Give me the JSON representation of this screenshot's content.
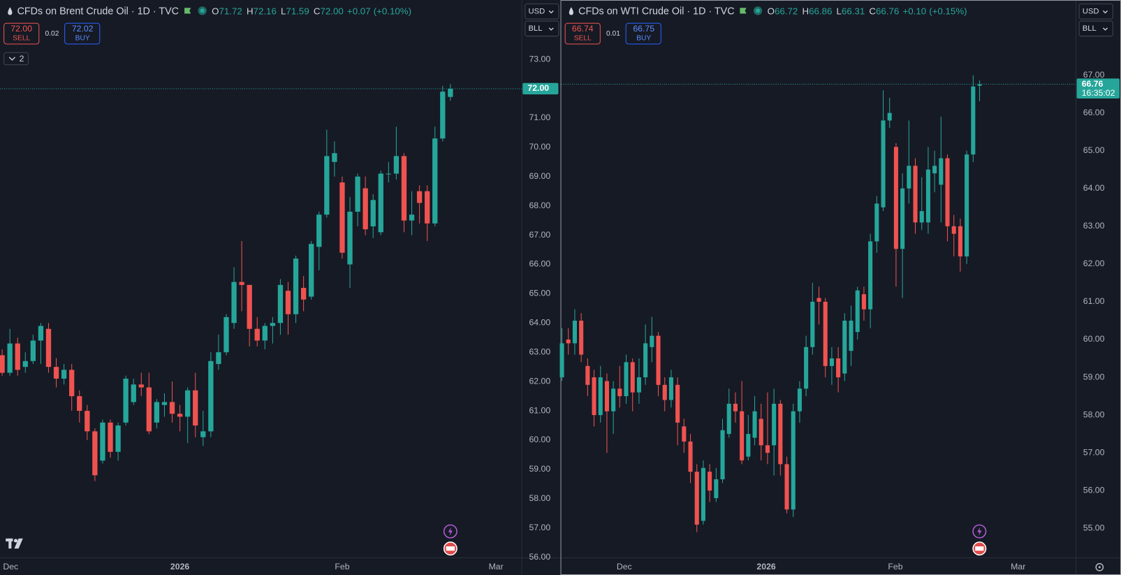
{
  "chart_data": [
    {
      "type": "candlestick",
      "title": "CFDs on Brent Crude Oil · 1D · TVC",
      "readout": {
        "labels": [
          "O",
          "H",
          "L",
          "C"
        ],
        "values": [
          "71.72",
          "72.16",
          "71.59",
          "72.00"
        ],
        "change": "+0.07",
        "change_pct": "(+0.10%)"
      },
      "sell": {
        "price": "72.00",
        "label": "SELL"
      },
      "spread": "0.02",
      "buy": {
        "price": "72.02",
        "label": "BUY"
      },
      "indicators": "2",
      "currency": "USD",
      "unit": "BLL",
      "up_color": "#26a69a",
      "down_color": "#ef5350",
      "open": [
        62.9,
        62.3,
        63.3,
        62.5,
        62.7,
        63.4,
        63.8,
        62.5,
        62.1,
        62.4,
        61.5,
        61.0,
        60.3,
        59.3,
        60.6,
        59.6,
        60.6,
        61.3,
        61.9,
        61.8,
        60.6,
        61.2,
        61.3,
        60.9,
        60.8,
        61.7,
        60.1,
        60.3,
        62.6,
        63.0,
        64.0,
        65.4,
        65.3,
        63.8,
        63.4,
        63.9,
        64.0,
        65.1,
        64.3,
        65.2,
        64.9,
        66.6,
        67.7,
        69.5,
        68.8,
        66.0,
        67.8,
        68.6,
        67.3,
        67.1,
        69.1,
        69.1,
        69.7,
        67.5,
        68.5,
        68.5,
        67.4,
        70.3,
        71.72
      ],
      "high": [
        63.1,
        63.8,
        63.5,
        63.0,
        63.6,
        64.0,
        64.0,
        62.8,
        62.6,
        62.6,
        61.7,
        61.2,
        60.4,
        60.7,
        60.7,
        60.6,
        62.2,
        62.1,
        62.3,
        62.3,
        61.4,
        61.6,
        62.0,
        61.2,
        61.8,
        62.3,
        61.0,
        63.0,
        63.6,
        64.3,
        65.9,
        66.8,
        65.3,
        64.2,
        64.0,
        64.2,
        65.5,
        65.4,
        66.3,
        65.6,
        66.8,
        67.8,
        70.6,
        70.2,
        69.0,
        68.3,
        69.1,
        69.0,
        68.4,
        69.2,
        69.5,
        70.7,
        69.8,
        68.5,
        68.7,
        68.7,
        70.7,
        72.1,
        72.16
      ],
      "low": [
        62.2,
        62.2,
        62.2,
        62.3,
        62.6,
        62.6,
        62.3,
        61.8,
        61.9,
        61.0,
        60.6,
        60.0,
        58.6,
        59.2,
        59.4,
        59.3,
        60.5,
        61.2,
        61.5,
        60.2,
        60.4,
        60.8,
        60.6,
        60.3,
        59.9,
        60.1,
        59.8,
        60.1,
        62.4,
        62.9,
        63.8,
        64.4,
        63.2,
        63.2,
        63.1,
        63.3,
        63.6,
        63.6,
        64.0,
        64.4,
        64.8,
        65.8,
        67.6,
        69.0,
        66.2,
        65.2,
        67.3,
        67.0,
        66.9,
        67.0,
        68.8,
        68.9,
        67.1,
        67.0,
        67.4,
        66.8,
        67.3,
        70.2,
        71.59
      ],
      "close": [
        62.3,
        63.3,
        62.4,
        62.7,
        63.4,
        63.9,
        62.5,
        62.1,
        62.4,
        61.5,
        61.0,
        60.3,
        58.8,
        60.6,
        59.6,
        60.5,
        62.1,
        61.9,
        61.8,
        60.3,
        61.3,
        61.3,
        60.9,
        60.8,
        61.7,
        60.5,
        60.3,
        62.7,
        63.0,
        64.2,
        65.4,
        65.3,
        63.8,
        63.4,
        63.9,
        64.0,
        65.3,
        64.3,
        66.2,
        64.8,
        66.7,
        67.7,
        69.7,
        69.8,
        66.4,
        67.8,
        69.0,
        67.2,
        68.2,
        69.1,
        69.1,
        69.7,
        67.5,
        67.7,
        68.1,
        67.4,
        70.3,
        71.9,
        72.0
      ],
      "last_price": "72.00",
      "xlim": [
        -0.28,
        67.25
      ],
      "xticks": [
        {
          "value": 1.1,
          "label": "Dec"
        },
        {
          "value": 23.0,
          "label": "2026"
        },
        {
          "value": 44.0,
          "label": "Feb"
        },
        {
          "value": 63.9,
          "label": "Mar"
        }
      ],
      "ylim": [
        55.98,
        75.03
      ],
      "yticks": [
        {
          "value": 56,
          "label": "56.00"
        },
        {
          "value": 57,
          "label": "57.00"
        },
        {
          "value": 58,
          "label": "58.00"
        },
        {
          "value": 59,
          "label": "59.00"
        },
        {
          "value": 60,
          "label": "60.00"
        },
        {
          "value": 61,
          "label": "61.00"
        },
        {
          "value": 62,
          "label": "62.00"
        },
        {
          "value": 63,
          "label": "63.00"
        },
        {
          "value": 64,
          "label": "64.00"
        },
        {
          "value": 65,
          "label": "65.00"
        },
        {
          "value": 66,
          "label": "66.00"
        },
        {
          "value": 67,
          "label": "67.00"
        },
        {
          "value": 68,
          "label": "68.00"
        },
        {
          "value": 69,
          "label": "69.00"
        },
        {
          "value": 70,
          "label": "70.00"
        },
        {
          "value": 71,
          "label": "71.00"
        },
        {
          "value": 72,
          "label": "72.00"
        },
        {
          "value": 73,
          "label": "73.00"
        }
      ],
      "grid": false
    },
    {
      "type": "candlestick",
      "title": "CFDs on WTI Crude Oil · 1D · TVC",
      "readout": {
        "labels": [
          "O",
          "H",
          "L",
          "C"
        ],
        "values": [
          "66.72",
          "66.86",
          "66.31",
          "66.76"
        ],
        "change": "+0.10",
        "change_pct": "(+0.15%)"
      },
      "sell": {
        "price": "66.74",
        "label": "SELL"
      },
      "spread": "0.01",
      "buy": {
        "price": "66.75",
        "label": "BUY"
      },
      "currency": "USD",
      "unit": "BLL",
      "countdown": "16:35:02",
      "up_color": "#26a69a",
      "down_color": "#ef5350",
      "open": [
        59.0,
        60.0,
        59.9,
        60.5,
        59.3,
        59.0,
        58.0,
        58.9,
        58.1,
        58.7,
        58.5,
        59.4,
        58.6,
        59.0,
        59.8,
        60.1,
        58.8,
        58.4,
        58.8,
        57.7,
        57.3,
        56.5,
        55.2,
        56.5,
        55.8,
        56.3,
        57.5,
        58.3,
        58.1,
        56.9,
        57.4,
        57.9,
        57.2,
        57.2,
        58.3,
        56.7,
        55.5,
        58.1,
        58.7,
        59.8,
        61.1,
        61.0,
        59.3,
        59.5,
        59.1,
        59.7,
        60.2,
        61.2,
        60.8,
        62.6,
        63.5,
        65.8,
        65.1,
        62.4,
        64.0,
        64.6,
        63.1,
        63.1,
        64.4,
        64.1,
        64.8,
        63.0,
        63.0,
        62.2,
        64.9,
        66.72
      ],
      "high": [
        60.3,
        60.3,
        60.8,
        60.7,
        59.5,
        59.2,
        59.3,
        59.1,
        58.9,
        59.3,
        59.6,
        59.5,
        59.5,
        60.4,
        60.6,
        60.2,
        59.0,
        59.2,
        59.0,
        57.9,
        57.5,
        56.7,
        56.8,
        56.7,
        56.6,
        57.9,
        58.7,
        58.6,
        58.9,
        58.0,
        58.5,
        58.3,
        58.6,
        58.7,
        58.4,
        56.9,
        58.3,
        58.9,
        60.1,
        61.5,
        61.4,
        61.1,
        59.8,
        59.8,
        60.7,
        60.9,
        61.4,
        61.4,
        62.8,
        63.8,
        66.6,
        66.4,
        65.2,
        64.4,
        65.8,
        64.8,
        64.3,
        65.1,
        65.0,
        65.9,
        64.9,
        63.3,
        63.2,
        65.0,
        67.0,
        66.86
      ],
      "low": [
        58.9,
        59.6,
        59.6,
        59.4,
        58.5,
        57.7,
        57.8,
        57.0,
        57.5,
        58.2,
        58.3,
        58.1,
        58.3,
        58.8,
        59.4,
        58.5,
        58.1,
        58.2,
        57.2,
        57.0,
        56.2,
        54.9,
        55.1,
        55.7,
        55.7,
        56.2,
        57.4,
        57.8,
        56.7,
        56.8,
        57.2,
        56.8,
        56.7,
        56.4,
        56.4,
        55.4,
        55.3,
        57.8,
        58.5,
        59.6,
        60.4,
        59.0,
        58.8,
        58.6,
        58.9,
        59.3,
        60.0,
        60.5,
        60.3,
        62.3,
        63.4,
        65.6,
        61.4,
        61.1,
        63.6,
        62.8,
        62.9,
        62.8,
        63.9,
        63.1,
        62.6,
        62.2,
        61.8,
        62.0,
        64.7,
        66.31
      ],
      "close": [
        59.9,
        59.9,
        60.5,
        59.6,
        58.8,
        58.0,
        59.0,
        58.1,
        58.7,
        58.5,
        59.4,
        58.6,
        59.0,
        59.9,
        60.1,
        58.8,
        58.4,
        59.0,
        57.8,
        57.3,
        56.5,
        55.1,
        56.6,
        56.0,
        56.3,
        57.6,
        58.3,
        58.1,
        56.8,
        57.5,
        58.1,
        57.2,
        57.0,
        58.3,
        56.7,
        55.5,
        58.1,
        58.7,
        59.8,
        61.0,
        61.0,
        59.3,
        59.5,
        59.0,
        60.5,
        60.5,
        61.3,
        60.8,
        62.6,
        63.6,
        65.8,
        66.0,
        62.4,
        64.0,
        64.6,
        63.1,
        63.4,
        64.5,
        64.6,
        64.8,
        63.0,
        62.8,
        62.2,
        64.9,
        66.7,
        66.76
      ],
      "last_price": "66.76",
      "xlim": [
        -0.11,
        80.0
      ],
      "xticks": [
        {
          "value": 9.7,
          "label": "Dec"
        },
        {
          "value": 31.8,
          "label": "2026"
        },
        {
          "value": 51.9,
          "label": "Feb"
        },
        {
          "value": 71.0,
          "label": "Mar"
        }
      ],
      "ylim": [
        54.22,
        68.99
      ],
      "yticks": [
        {
          "value": 55,
          "label": "55.00"
        },
        {
          "value": 56,
          "label": "56.00"
        },
        {
          "value": 57,
          "label": "57.00"
        },
        {
          "value": 58,
          "label": "58.00"
        },
        {
          "value": 59,
          "label": "59.00"
        },
        {
          "value": 60,
          "label": "60.00"
        },
        {
          "value": 61,
          "label": "61.00"
        },
        {
          "value": 62,
          "label": "62.00"
        },
        {
          "value": 63,
          "label": "63.00"
        },
        {
          "value": 64,
          "label": "64.00"
        },
        {
          "value": 65,
          "label": "65.00"
        },
        {
          "value": 66,
          "label": "66.00"
        },
        {
          "value": 67,
          "label": "67.00"
        }
      ],
      "grid": false
    }
  ]
}
